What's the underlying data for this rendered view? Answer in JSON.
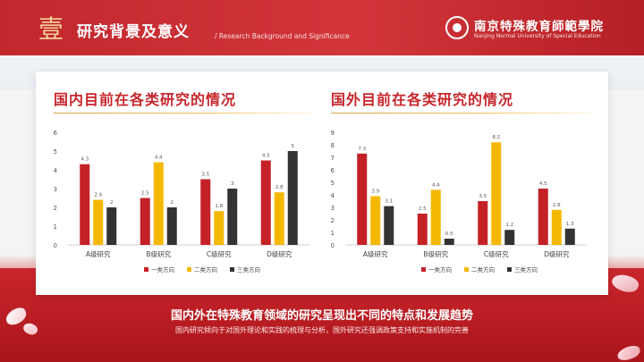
{
  "header": {
    "seal_char": "壹",
    "title": "研究背景及意义",
    "subtitle": "/ Research  Background  and  Significance",
    "logo_cn": "南京特殊教育師範學院",
    "logo_en": "Nanjing Normal University of Special Education"
  },
  "colors": {
    "brand_red": "#c1272d",
    "series": [
      "#c42127",
      "#f5b800",
      "#333333"
    ]
  },
  "footer": {
    "title": "国内外在特殊教育领域的研究呈现出不同的特点和发展趋势",
    "subtitle": "国内研究倾向于对国外理论和实践的梳理与分析，国外研究还强调政策支持和实施机制的完善"
  },
  "chart_data": [
    {
      "type": "bar",
      "title": "国内目前在各类研究的情况",
      "categories": [
        "A级研究",
        "B级研究",
        "C级研究",
        "D级研究"
      ],
      "series": [
        {
          "name": "一类方向",
          "values": [
            4.3,
            2.5,
            3.5,
            4.5
          ]
        },
        {
          "name": "二类方向",
          "values": [
            2.4,
            4.4,
            1.8,
            2.8
          ]
        },
        {
          "name": "三类方向",
          "values": [
            2,
            2,
            3,
            5
          ]
        }
      ],
      "ylim": [
        0,
        6
      ],
      "yticks": [
        0,
        1,
        2,
        3,
        4,
        5,
        6
      ],
      "legend": "bottom"
    },
    {
      "type": "bar",
      "title": "国外目前在各类研究的情况",
      "categories": [
        "A级研究",
        "B级研究",
        "C级研究",
        "D级研究"
      ],
      "series": [
        {
          "name": "一类方向",
          "values": [
            7.3,
            2.5,
            3.5,
            4.5
          ]
        },
        {
          "name": "二类方向",
          "values": [
            3.9,
            4.4,
            8.2,
            2.8
          ]
        },
        {
          "name": "三类方向",
          "values": [
            3.1,
            0.5,
            1.2,
            1.3
          ]
        }
      ],
      "ylim": [
        0,
        9
      ],
      "yticks": [
        0,
        1,
        2,
        3,
        4,
        5,
        6,
        7,
        8,
        9
      ],
      "legend": "bottom"
    }
  ]
}
